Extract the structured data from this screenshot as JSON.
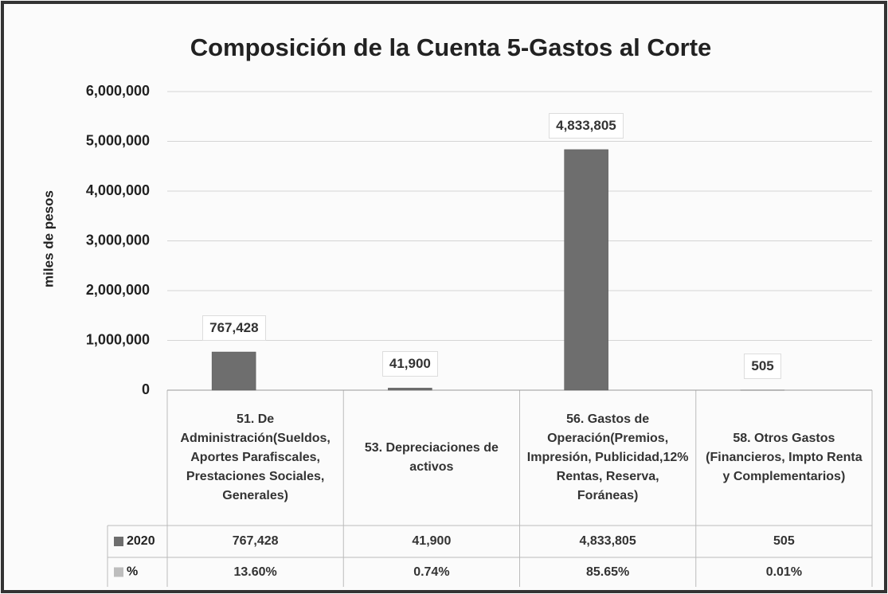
{
  "chart_data": {
    "type": "bar",
    "title": "Composición de la Cuenta 5-Gastos al Corte",
    "y_label": "miles de pesos",
    "categories": [
      "51. De Administración(Sueldos, Aportes Parafiscales, Prestaciones Sociales, Generales)",
      "53. Depreciaciones de activos",
      "56. Gastos de Operación(Premios, Impresión, Publicidad,12% Rentas, Reserva, Foráneas)",
      "58. Otros Gastos (Financieros, Impto Renta y Complementarios)"
    ],
    "series": [
      {
        "name": "2020",
        "color": "#6e6e6e",
        "values": [
          767428,
          41900,
          4833805,
          505
        ],
        "value_labels": [
          "767,428",
          "41,900",
          "4,833,805",
          "505"
        ]
      },
      {
        "name": "%",
        "color": "#bdbdbd",
        "values": [
          13.6,
          0.74,
          85.65,
          0.01
        ],
        "value_labels": [
          "13.60%",
          "0.74%",
          "85.65%",
          "0.01%"
        ]
      }
    ],
    "ylim": [
      0,
      6000000
    ],
    "yticks": [
      0,
      {
        "value": 1000000,
        "label": "1,000,000"
      },
      {
        "value": 2000000,
        "label": "2,000,000"
      },
      {
        "value": 3000000,
        "label": "3,000,000"
      },
      {
        "value": 4000000,
        "label": "4,000,000"
      },
      {
        "value": 5000000,
        "label": "5,000,000"
      },
      {
        "value": 6000000,
        "label": "6,000,000"
      }
    ],
    "grid": true,
    "data_table": true
  }
}
